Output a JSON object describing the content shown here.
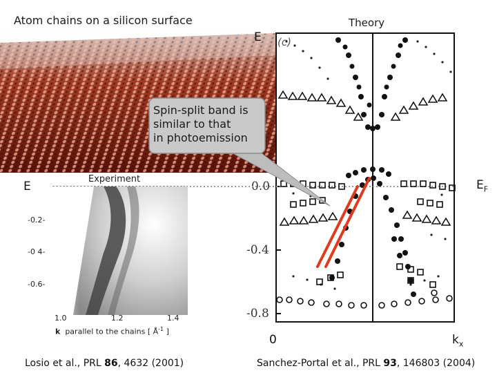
{
  "left_title": "Atom chains on a silicon surface",
  "right_title": "Theory",
  "energy_label_theory": "E",
  "energy_label_exp": "E",
  "fermi_label": {
    "main": "E",
    "sub": "F"
  },
  "callout": {
    "line1": "Spin-split band is",
    "line2": "similar to that",
    "line3": "in photoemission"
  },
  "experiment": {
    "label": "Experiment",
    "y_ticks": [
      "-0.2-",
      "-0 4-",
      "-0.6-"
    ],
    "x_ticks": [
      "1.0",
      "1.2",
      "1.4"
    ],
    "x_axis_k": "k",
    "x_axis_text": "parallel to the chains [ Å",
    "x_axis_exp": "-1",
    "x_axis_close": "]"
  },
  "theory": {
    "panel_tag": "(c)",
    "y_ticks": [
      "0.0",
      "-0.4",
      "-0.8"
    ],
    "x_zero": "0",
    "x_k": {
      "main": "k",
      "sub": "x"
    }
  },
  "references": {
    "left": {
      "prefix": "Losio et al., PRL ",
      "volume": "86",
      "suffix": ", 4632 (2001)"
    },
    "right": {
      "prefix": "Sanchez-Portal et al., PRL ",
      "volume": "93",
      "suffix": ", 146803 (2004)"
    }
  },
  "colors": {
    "accent_red": "#e03a1e",
    "callout_bg": "#c9c9c9",
    "dotted": "#999999"
  }
}
